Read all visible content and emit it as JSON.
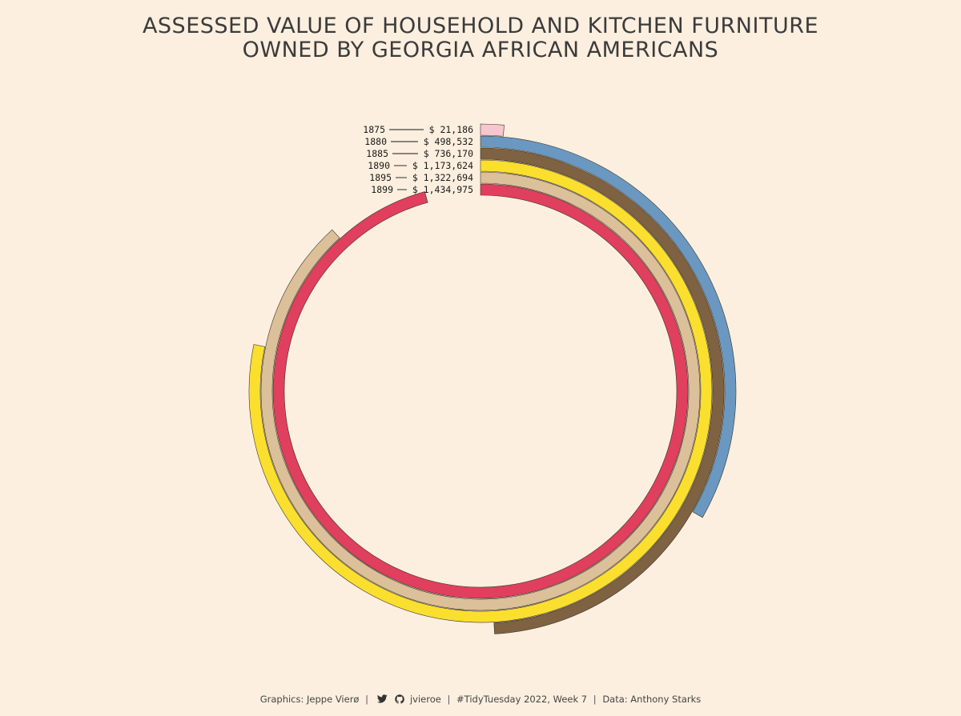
{
  "title": {
    "line1": "ASSESSED VALUE OF HOUSEHOLD AND KITCHEN FURNITURE",
    "line2": "OWNED BY GEORGIA AFRICAN AMERICANS"
  },
  "chart_data": {
    "type": "radial-bar",
    "title": "ASSESSED VALUE OF HOUSEHOLD AND KITCHEN FURNITURE OWNED BY GEORGIA AFRICAN AMERICANS",
    "max_value_full_circle": 1500000,
    "series": [
      {
        "year": "1875",
        "value": 21186,
        "label": "$ 21,186",
        "color": "#f7c6cf"
      },
      {
        "year": "1880",
        "value": 498532,
        "label": "$ 498,532",
        "color": "#6a98c0"
      },
      {
        "year": "1885",
        "value": 736170,
        "label": "$ 736,170",
        "color": "#7e6241"
      },
      {
        "year": "1890",
        "value": 1173624,
        "label": "$ 1,173,624",
        "color": "#fbdf2e"
      },
      {
        "year": "1895",
        "value": 1322694,
        "label": "$ 1,322,694",
        "color": "#dbc099"
      },
      {
        "year": "1899",
        "value": 1434975,
        "label": "$ 1,434,975",
        "color": "#e03f5e"
      }
    ]
  },
  "caption": {
    "graphics": "Graphics: Jeppe Vierø",
    "handle": "jvieroe",
    "tidytuesday": "#TidyTuesday 2022, Week 7",
    "data_source": "Data: Anthony Starks",
    "sep": "|"
  },
  "icons": {
    "twitter": "twitter-icon",
    "github": "github-icon"
  }
}
